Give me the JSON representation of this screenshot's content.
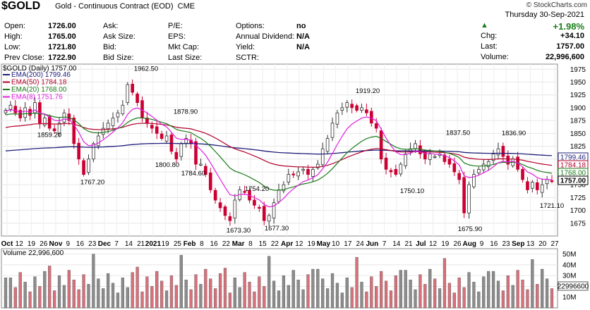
{
  "header": {
    "symbol": "$GOLD",
    "name": "Gold - Continuous Contract (EOD)",
    "exchange": "CME",
    "brand": "© StockCharts.com",
    "date": "Thursday 30-Sep-2021",
    "change_pct": "+1.98%",
    "col1": [
      {
        "label": "Open:",
        "value": "1726.00"
      },
      {
        "label": "High:",
        "value": "1765.00"
      },
      {
        "label": "Low:",
        "value": "1721.80"
      },
      {
        "label": "Prev Close:",
        "value": "1722.90"
      }
    ],
    "col2": [
      {
        "label": "Ask:",
        "value": ""
      },
      {
        "label": "Ask Size:",
        "value": ""
      },
      {
        "label": "Bid:",
        "value": ""
      },
      {
        "label": "Bid Size:",
        "value": ""
      }
    ],
    "col3": [
      {
        "label": "P/E:",
        "value": ""
      },
      {
        "label": "EPS:",
        "value": ""
      },
      {
        "label": "Mkt Cap:",
        "value": ""
      },
      {
        "label": "Last Size:",
        "value": ""
      }
    ],
    "col4": [
      {
        "label": "Options:",
        "value": "no"
      },
      {
        "label": "Annual Dividend:",
        "value": "N/A"
      },
      {
        "label": "Yield:",
        "value": "N/A"
      },
      {
        "label": "SCTR:",
        "value": ""
      }
    ],
    "right": [
      {
        "label": "Chg:",
        "value": "+34.10"
      },
      {
        "label": "Last:",
        "value": "1757.00"
      },
      {
        "label": "Volume:",
        "value": "22,996,600"
      }
    ]
  },
  "colors": {
    "up": "#1a7f1a",
    "down_candle": "#cc0033",
    "ema200": "#1f1f7a",
    "ema50": "#b0002a",
    "ema20": "#1a7a1a",
    "ema8": "#e020e0",
    "vol_up": "#8c8c8c",
    "vol_down": "#d9707a"
  },
  "chart_data": {
    "type": "candlestick",
    "title": "$GOLD (Daily) 1757.00",
    "ylim": [
      1650,
      1985
    ],
    "yticks": [
      1675,
      1700,
      1725,
      1750,
      1775,
      1800,
      1825,
      1850,
      1875,
      1900,
      1925,
      1950,
      1975
    ],
    "x_labels": [
      "Oct",
      "12",
      "19",
      "26",
      "Nov",
      "9",
      "16",
      "23",
      "Dec",
      "7",
      "14",
      "21",
      "2021",
      "19",
      "25",
      "Feb",
      "8",
      "16",
      "22",
      "Mar",
      "8",
      "15",
      "22",
      "Apr",
      "12",
      "19",
      "May",
      "10",
      "17",
      "24",
      "Jun",
      "7",
      "14",
      "21",
      "Jul",
      "12",
      "19",
      "26",
      "Aug",
      "9",
      "16",
      "23",
      "Sep",
      "13",
      "20",
      "27"
    ],
    "close_path": [
      1895,
      1905,
      1890,
      1880,
      1900,
      1885,
      1910,
      1870,
      1880,
      1860,
      1855,
      1870,
      1890,
      1875,
      1830,
      1800,
      1770,
      1800,
      1830,
      1845,
      1860,
      1870,
      1880,
      1890,
      1905,
      1945,
      1930,
      1910,
      1880,
      1870,
      1860,
      1850,
      1840,
      1845,
      1815,
      1800,
      1830,
      1840,
      1830,
      1790,
      1790,
      1770,
      1740,
      1720,
      1705,
      1690,
      1680,
      1720,
      1740,
      1735,
      1720,
      1710,
      1705,
      1680,
      1690,
      1715,
      1740,
      1750,
      1770,
      1770,
      1775,
      1780,
      1770,
      1780,
      1790,
      1820,
      1840,
      1870,
      1890,
      1900,
      1910,
      1900,
      1895,
      1900,
      1890,
      1870,
      1860,
      1800,
      1780,
      1775,
      1770,
      1790,
      1810,
      1820,
      1830,
      1810,
      1800,
      1810,
      1805,
      1810,
      1795,
      1790,
      1775,
      1760,
      1695,
      1750,
      1770,
      1780,
      1790,
      1795,
      1810,
      1820,
      1805,
      1790,
      1800,
      1780,
      1760,
      1740,
      1755,
      1740,
      1750,
      1760,
      1757
    ],
    "annotations": [
      {
        "label": "1962.50",
        "value": 1962.5
      },
      {
        "label": "1878.90",
        "value": 1878.9
      },
      {
        "label": "1859.20",
        "value": 1859.2
      },
      {
        "label": "1800.80",
        "value": 1800.8
      },
      {
        "label": "1784.60",
        "value": 1784.6
      },
      {
        "label": "1767.20",
        "value": 1767.2
      },
      {
        "label": "1754.20",
        "value": 1754.2
      },
      {
        "label": "1673.30",
        "value": 1673.3
      },
      {
        "label": "1677.30",
        "value": 1677.3
      },
      {
        "label": "1919.20",
        "value": 1919.2
      },
      {
        "label": "1750.10",
        "value": 1750.1
      },
      {
        "label": "1837.50",
        "value": 1837.5
      },
      {
        "label": "1675.90",
        "value": 1675.9
      },
      {
        "label": "1836.90",
        "value": 1836.9
      },
      {
        "label": "1721.10",
        "value": 1721.1
      }
    ],
    "series": [
      {
        "name": "EMA(200) 1799.46",
        "last": 1799.46,
        "color": "#1f1f7a"
      },
      {
        "name": "EMA(50) 1784.18",
        "last": 1784.18,
        "color": "#b0002a"
      },
      {
        "name": "EMA(20) 1768.00",
        "last": 1768.0,
        "color": "#1a7a1a"
      },
      {
        "name": "EMA(8) 1751.76",
        "last": 1751.76,
        "color": "#e020e0"
      }
    ],
    "price_tags": [
      "1799.46",
      "1784.18",
      "1768.00",
      "1757.00"
    ],
    "volume": {
      "title": "Volume 22,996,600",
      "last_tag": "22996600",
      "ylim": [
        0,
        55
      ],
      "yticks": [
        "10M",
        "20M",
        "30M",
        "40M",
        "50M"
      ],
      "ytick_values": [
        10,
        20,
        30,
        40,
        50
      ]
    }
  }
}
